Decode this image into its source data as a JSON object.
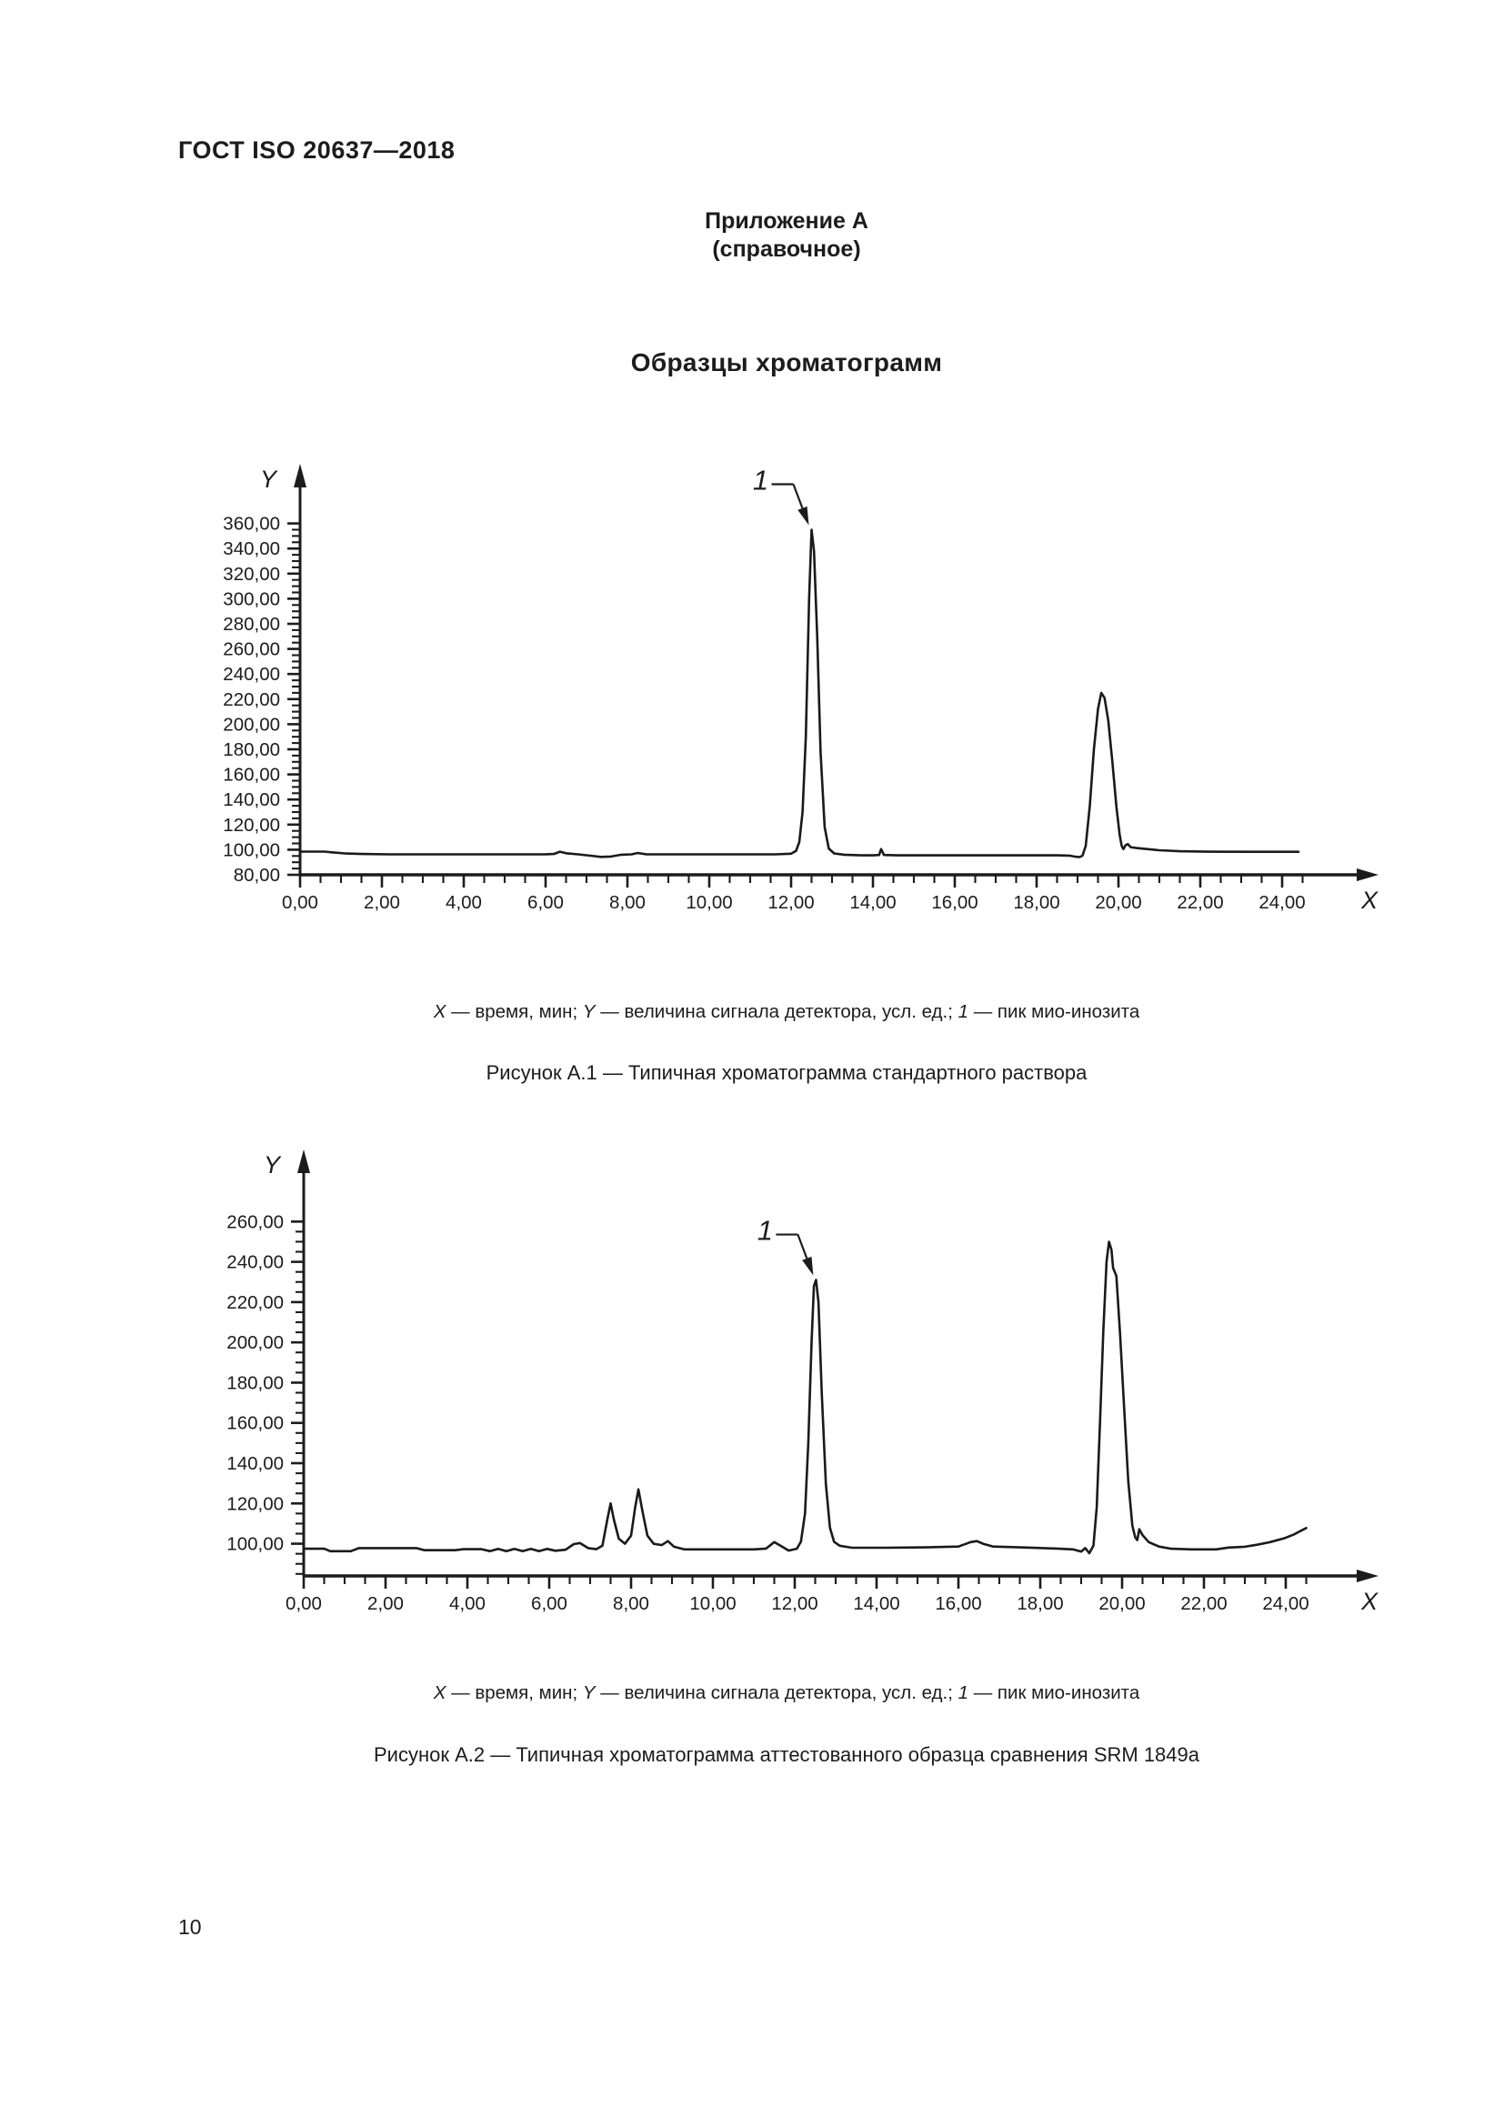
{
  "page": {
    "header": "ГОСТ ISO 20637—2018",
    "page_number": "10"
  },
  "appendix": {
    "title": "Приложение А",
    "subtitle": "(справочное)",
    "section_title": "Образцы хроматограмм"
  },
  "figures": [
    {
      "caption_parts": [
        {
          "t": "X",
          "i": 1
        },
        {
          "t": " — время, мин; ",
          "i": 0
        },
        {
          "t": "Y",
          "i": 1
        },
        {
          "t": " — величина сигнала детектора, усл. ед.; ",
          "i": 0
        },
        {
          "t": "1",
          "i": 1
        },
        {
          "t": " — пик мио-инозита",
          "i": 0
        }
      ],
      "figure_label": "Рисунок А.1 — Типичная хроматограмма стандартного раствора"
    },
    {
      "caption_parts": [
        {
          "t": "X",
          "i": 1
        },
        {
          "t": " — время, мин; ",
          "i": 0
        },
        {
          "t": "Y",
          "i": 1
        },
        {
          "t": " — величина сигнала детектора, усл. ед.; ",
          "i": 0
        },
        {
          "t": "1",
          "i": 1
        },
        {
          "t": " — пик мио-инозита",
          "i": 0
        }
      ],
      "figure_label": "Рисунок А.2 — Типичная хроматограмма аттестованного образца сравнения SRM 1849а"
    }
  ],
  "chart_data": [
    {
      "type": "line",
      "title": "Типичная хроматограмма стандартного раствора",
      "xlabel": "X",
      "ylabel": "Y",
      "x_ticks": [
        0,
        2,
        4,
        6,
        8,
        10,
        12,
        14,
        16,
        18,
        20,
        22,
        24
      ],
      "x_tick_labels": [
        "0,00",
        "2,00",
        "4,00",
        "6,00",
        "8,00",
        "10,00",
        "12,00",
        "14,00",
        "16,00",
        "18,00",
        "20,00",
        "22,00",
        "24,00"
      ],
      "y_ticks": [
        80,
        100,
        120,
        140,
        160,
        180,
        200,
        220,
        240,
        260,
        280,
        300,
        320,
        340,
        360
      ],
      "y_tick_labels": [
        "80,00",
        "100,00",
        "120,00",
        "140,00",
        "160,00",
        "180,00",
        "200,00",
        "220,00",
        "240,00",
        "260,00",
        "280,00",
        "300,00",
        "320,00",
        "340,00",
        "360,00"
      ],
      "xlim": [
        0,
        24.5
      ],
      "ylim": [
        80,
        406
      ],
      "x_minor_step": 0.5,
      "y_minor_step": 5,
      "grid": false,
      "peak_annotation": {
        "label": "1",
        "x": 12.5,
        "y": 355
      },
      "series": [
        {
          "name": "detector signal",
          "points": [
            [
              0,
              98.5
            ],
            [
              0.6,
              98.5
            ],
            [
              0.75,
              98
            ],
            [
              1.1,
              97
            ],
            [
              1.5,
              96.6
            ],
            [
              2.2,
              96.3
            ],
            [
              3.2,
              96.3
            ],
            [
              4.5,
              96.3
            ],
            [
              5.6,
              96.3
            ],
            [
              6.0,
              96.4
            ],
            [
              6.2,
              96.6
            ],
            [
              6.35,
              98.4
            ],
            [
              6.5,
              97.2
            ],
            [
              6.8,
              96.3
            ],
            [
              7.1,
              95.2
            ],
            [
              7.35,
              94.3
            ],
            [
              7.6,
              94.6
            ],
            [
              7.85,
              96.0
            ],
            [
              8.1,
              96.3
            ],
            [
              8.25,
              97.4
            ],
            [
              8.45,
              96.4
            ],
            [
              8.9,
              96.3
            ],
            [
              10.0,
              96.3
            ],
            [
              11.0,
              96.3
            ],
            [
              11.6,
              96.3
            ],
            [
              12.0,
              96.8
            ],
            [
              12.12,
              99
            ],
            [
              12.2,
              106
            ],
            [
              12.28,
              130
            ],
            [
              12.36,
              190
            ],
            [
              12.44,
              300
            ],
            [
              12.5,
              355
            ],
            [
              12.56,
              338
            ],
            [
              12.64,
              268
            ],
            [
              12.72,
              178
            ],
            [
              12.82,
              118
            ],
            [
              12.92,
              101
            ],
            [
              13.05,
              97
            ],
            [
              13.3,
              96
            ],
            [
              13.7,
              95.5
            ],
            [
              14.0,
              95.5
            ],
            [
              14.15,
              95.8
            ],
            [
              14.2,
              100.5
            ],
            [
              14.27,
              95.8
            ],
            [
              14.6,
              95.5
            ],
            [
              15.5,
              95.5
            ],
            [
              16.5,
              95.5
            ],
            [
              17.5,
              95.5
            ],
            [
              18.5,
              95.5
            ],
            [
              18.8,
              95.3
            ],
            [
              18.95,
              94.4
            ],
            [
              19.05,
              94.1
            ],
            [
              19.12,
              95.2
            ],
            [
              19.2,
              103
            ],
            [
              19.3,
              135
            ],
            [
              19.4,
              180
            ],
            [
              19.5,
              212
            ],
            [
              19.58,
              225
            ],
            [
              19.66,
              221
            ],
            [
              19.75,
              203
            ],
            [
              19.85,
              170
            ],
            [
              19.95,
              134
            ],
            [
              20.03,
              112
            ],
            [
              20.08,
              103
            ],
            [
              20.12,
              100.5
            ],
            [
              20.17,
              103.5
            ],
            [
              20.23,
              104.5
            ],
            [
              20.3,
              102
            ],
            [
              20.45,
              101.3
            ],
            [
              20.7,
              100.5
            ],
            [
              21.0,
              99.6
            ],
            [
              21.5,
              98.8
            ],
            [
              22.2,
              98.4
            ],
            [
              23.2,
              98.3
            ],
            [
              24.4,
              98.3
            ]
          ]
        }
      ]
    },
    {
      "type": "line",
      "title": "Типичная хроматограмма аттестованного образца сравнения SRM 1849а",
      "xlabel": "X",
      "ylabel": "Y",
      "x_ticks": [
        0,
        2,
        4,
        6,
        8,
        10,
        12,
        14,
        16,
        18,
        20,
        22,
        24
      ],
      "x_tick_labels": [
        "0,00",
        "2,00",
        "4,00",
        "6,00",
        "8,00",
        "10,00",
        "12,00",
        "14,00",
        "16,00",
        "18,00",
        "20,00",
        "22,00",
        "24,00"
      ],
      "y_ticks": [
        100,
        120,
        140,
        160,
        180,
        200,
        220,
        240,
        260
      ],
      "y_tick_labels": [
        "100,00",
        "120,00",
        "140,00",
        "160,00",
        "180,00",
        "200,00",
        "220,00",
        "240,00",
        "260,00"
      ],
      "xlim": [
        0,
        24.5
      ],
      "ylim": [
        84,
        294
      ],
      "x_minor_step": 0.5,
      "y_minor_step": 5,
      "grid": false,
      "peak_annotation": {
        "label": "1",
        "x": 12.52,
        "y": 231
      },
      "series": [
        {
          "name": "detector signal",
          "points": [
            [
              0,
              97.5
            ],
            [
              0.5,
              97.5
            ],
            [
              0.65,
              96.3
            ],
            [
              1.15,
              96.3
            ],
            [
              1.35,
              97.8
            ],
            [
              2.4,
              97.8
            ],
            [
              2.75,
              97.8
            ],
            [
              2.95,
              96.8
            ],
            [
              3.7,
              96.8
            ],
            [
              3.9,
              97.3
            ],
            [
              4.35,
              97.3
            ],
            [
              4.55,
              96.3
            ],
            [
              4.75,
              97.4
            ],
            [
              4.95,
              96.3
            ],
            [
              5.15,
              97.4
            ],
            [
              5.35,
              96.3
            ],
            [
              5.55,
              97.4
            ],
            [
              5.75,
              96.3
            ],
            [
              5.95,
              97.4
            ],
            [
              6.15,
              96.5
            ],
            [
              6.4,
              97.0
            ],
            [
              6.6,
              99.8
            ],
            [
              6.75,
              100.3
            ],
            [
              6.95,
              97.8
            ],
            [
              7.15,
              97.3
            ],
            [
              7.3,
              99
            ],
            [
              7.42,
              112
            ],
            [
              7.5,
              120
            ],
            [
              7.58,
              112
            ],
            [
              7.7,
              102.5
            ],
            [
              7.85,
              100
            ],
            [
              8.0,
              104
            ],
            [
              8.1,
              118
            ],
            [
              8.18,
              127
            ],
            [
              8.28,
              116
            ],
            [
              8.4,
              104
            ],
            [
              8.55,
              100
            ],
            [
              8.75,
              99.3
            ],
            [
              8.9,
              101.3
            ],
            [
              9.05,
              98.5
            ],
            [
              9.3,
              97.2
            ],
            [
              10.2,
              97.2
            ],
            [
              11.0,
              97.2
            ],
            [
              11.3,
              97.6
            ],
            [
              11.5,
              100.8
            ],
            [
              11.65,
              99
            ],
            [
              11.85,
              96.6
            ],
            [
              12.05,
              97.5
            ],
            [
              12.15,
              101
            ],
            [
              12.25,
              115
            ],
            [
              12.33,
              150
            ],
            [
              12.41,
              200
            ],
            [
              12.47,
              228
            ],
            [
              12.52,
              231
            ],
            [
              12.58,
              220
            ],
            [
              12.66,
              175
            ],
            [
              12.76,
              130
            ],
            [
              12.86,
              108
            ],
            [
              12.96,
              101
            ],
            [
              13.1,
              99
            ],
            [
              13.4,
              98
            ],
            [
              14.2,
              98
            ],
            [
              15.2,
              98.2
            ],
            [
              16.0,
              98.6
            ],
            [
              16.3,
              100.8
            ],
            [
              16.45,
              101.3
            ],
            [
              16.6,
              100
            ],
            [
              16.85,
              98.6
            ],
            [
              17.5,
              98.2
            ],
            [
              18.4,
              97.6
            ],
            [
              18.8,
              97.2
            ],
            [
              19.0,
              96.1
            ],
            [
              19.1,
              97.8
            ],
            [
              19.2,
              95.3
            ],
            [
              19.3,
              99
            ],
            [
              19.38,
              118
            ],
            [
              19.46,
              160
            ],
            [
              19.54,
              205
            ],
            [
              19.62,
              240
            ],
            [
              19.68,
              250
            ],
            [
              19.74,
              246
            ],
            [
              19.78,
              237
            ],
            [
              19.86,
              233
            ],
            [
              19.95,
              204
            ],
            [
              20.05,
              167
            ],
            [
              20.15,
              131
            ],
            [
              20.25,
              109
            ],
            [
              20.32,
              103.2
            ],
            [
              20.37,
              101.8
            ],
            [
              20.42,
              107.2
            ],
            [
              20.5,
              104.3
            ],
            [
              20.65,
              100.8
            ],
            [
              20.9,
              98.6
            ],
            [
              21.2,
              97.5
            ],
            [
              21.7,
              97.2
            ],
            [
              22.3,
              97.2
            ],
            [
              22.6,
              98.1
            ],
            [
              23.0,
              98.5
            ],
            [
              23.3,
              99.5
            ],
            [
              23.6,
              100.7
            ],
            [
              23.95,
              102.6
            ],
            [
              24.2,
              104.6
            ],
            [
              24.5,
              107.8
            ]
          ]
        }
      ]
    }
  ],
  "colors": {
    "ink": "#1c1c1c",
    "trace": "#1a1a1a",
    "background": "#ffffff"
  }
}
